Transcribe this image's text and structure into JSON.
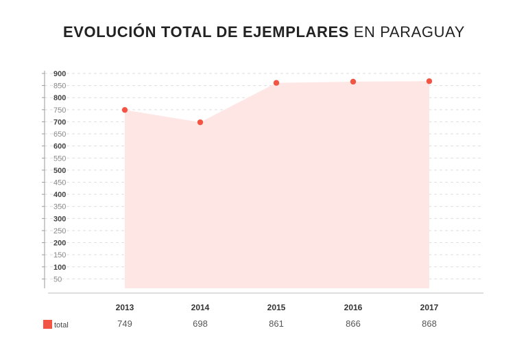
{
  "title": {
    "bold": "EVOLUCIÓN TOTAL DE EJEMPLARES",
    "light": "EN PARAGUAY"
  },
  "colors": {
    "point": "#f35545",
    "area": "#fde6e3",
    "legend": "#f35545",
    "grid": "#dddddd",
    "axis": "#999999"
  },
  "chart_data": {
    "type": "area",
    "title": "EVOLUCIÓN TOTAL DE EJEMPLARES EN PARAGUAY",
    "categories": [
      "2013",
      "2014",
      "2015",
      "2016",
      "2017"
    ],
    "series": [
      {
        "name": "total",
        "values": [
          749,
          698,
          861,
          866,
          868
        ]
      }
    ],
    "value_labels": [
      "749",
      "698",
      "861",
      "866",
      "868"
    ],
    "ylim": [
      0,
      900
    ],
    "yticks": [
      "50",
      "100",
      "150",
      "200",
      "250",
      "300",
      "350",
      "400",
      "450",
      "500",
      "550",
      "600",
      "650",
      "700",
      "750",
      "800",
      "850",
      "900"
    ],
    "xlabel": "",
    "ylabel": "",
    "grid": true,
    "legend": {
      "label": "total",
      "position": "bottom-left"
    }
  }
}
